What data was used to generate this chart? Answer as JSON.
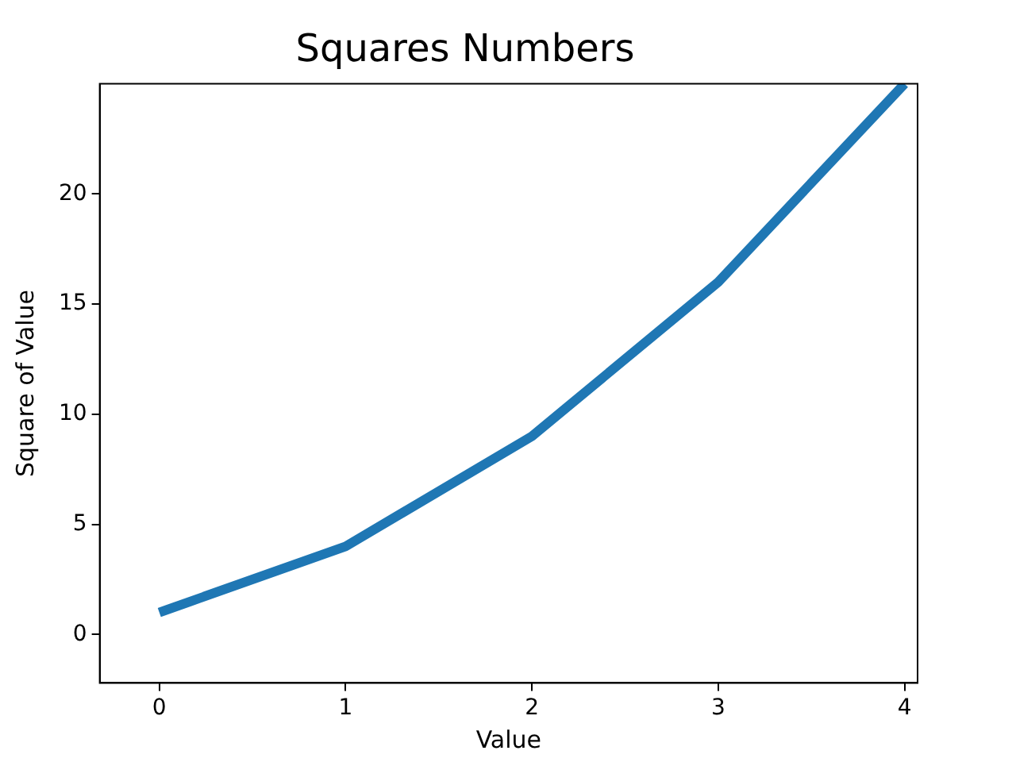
{
  "chart_data": {
    "type": "line",
    "title": "Squares Numbers",
    "xlabel": "Value",
    "ylabel": "Square of Value",
    "x": [
      0,
      1,
      2,
      3,
      4
    ],
    "series": [
      {
        "color": "#1f77b4",
        "values": [
          1,
          4,
          9,
          16,
          25
        ]
      }
    ],
    "xlim": [
      -0.32,
      4.07
    ],
    "xticks": [
      0,
      1,
      2,
      3,
      4
    ],
    "ylim": [
      -2.2,
      25
    ],
    "yticks": [
      0,
      5,
      10,
      15,
      20
    ],
    "grid": false,
    "legend": false,
    "marker": "none",
    "line_style": "solid"
  }
}
